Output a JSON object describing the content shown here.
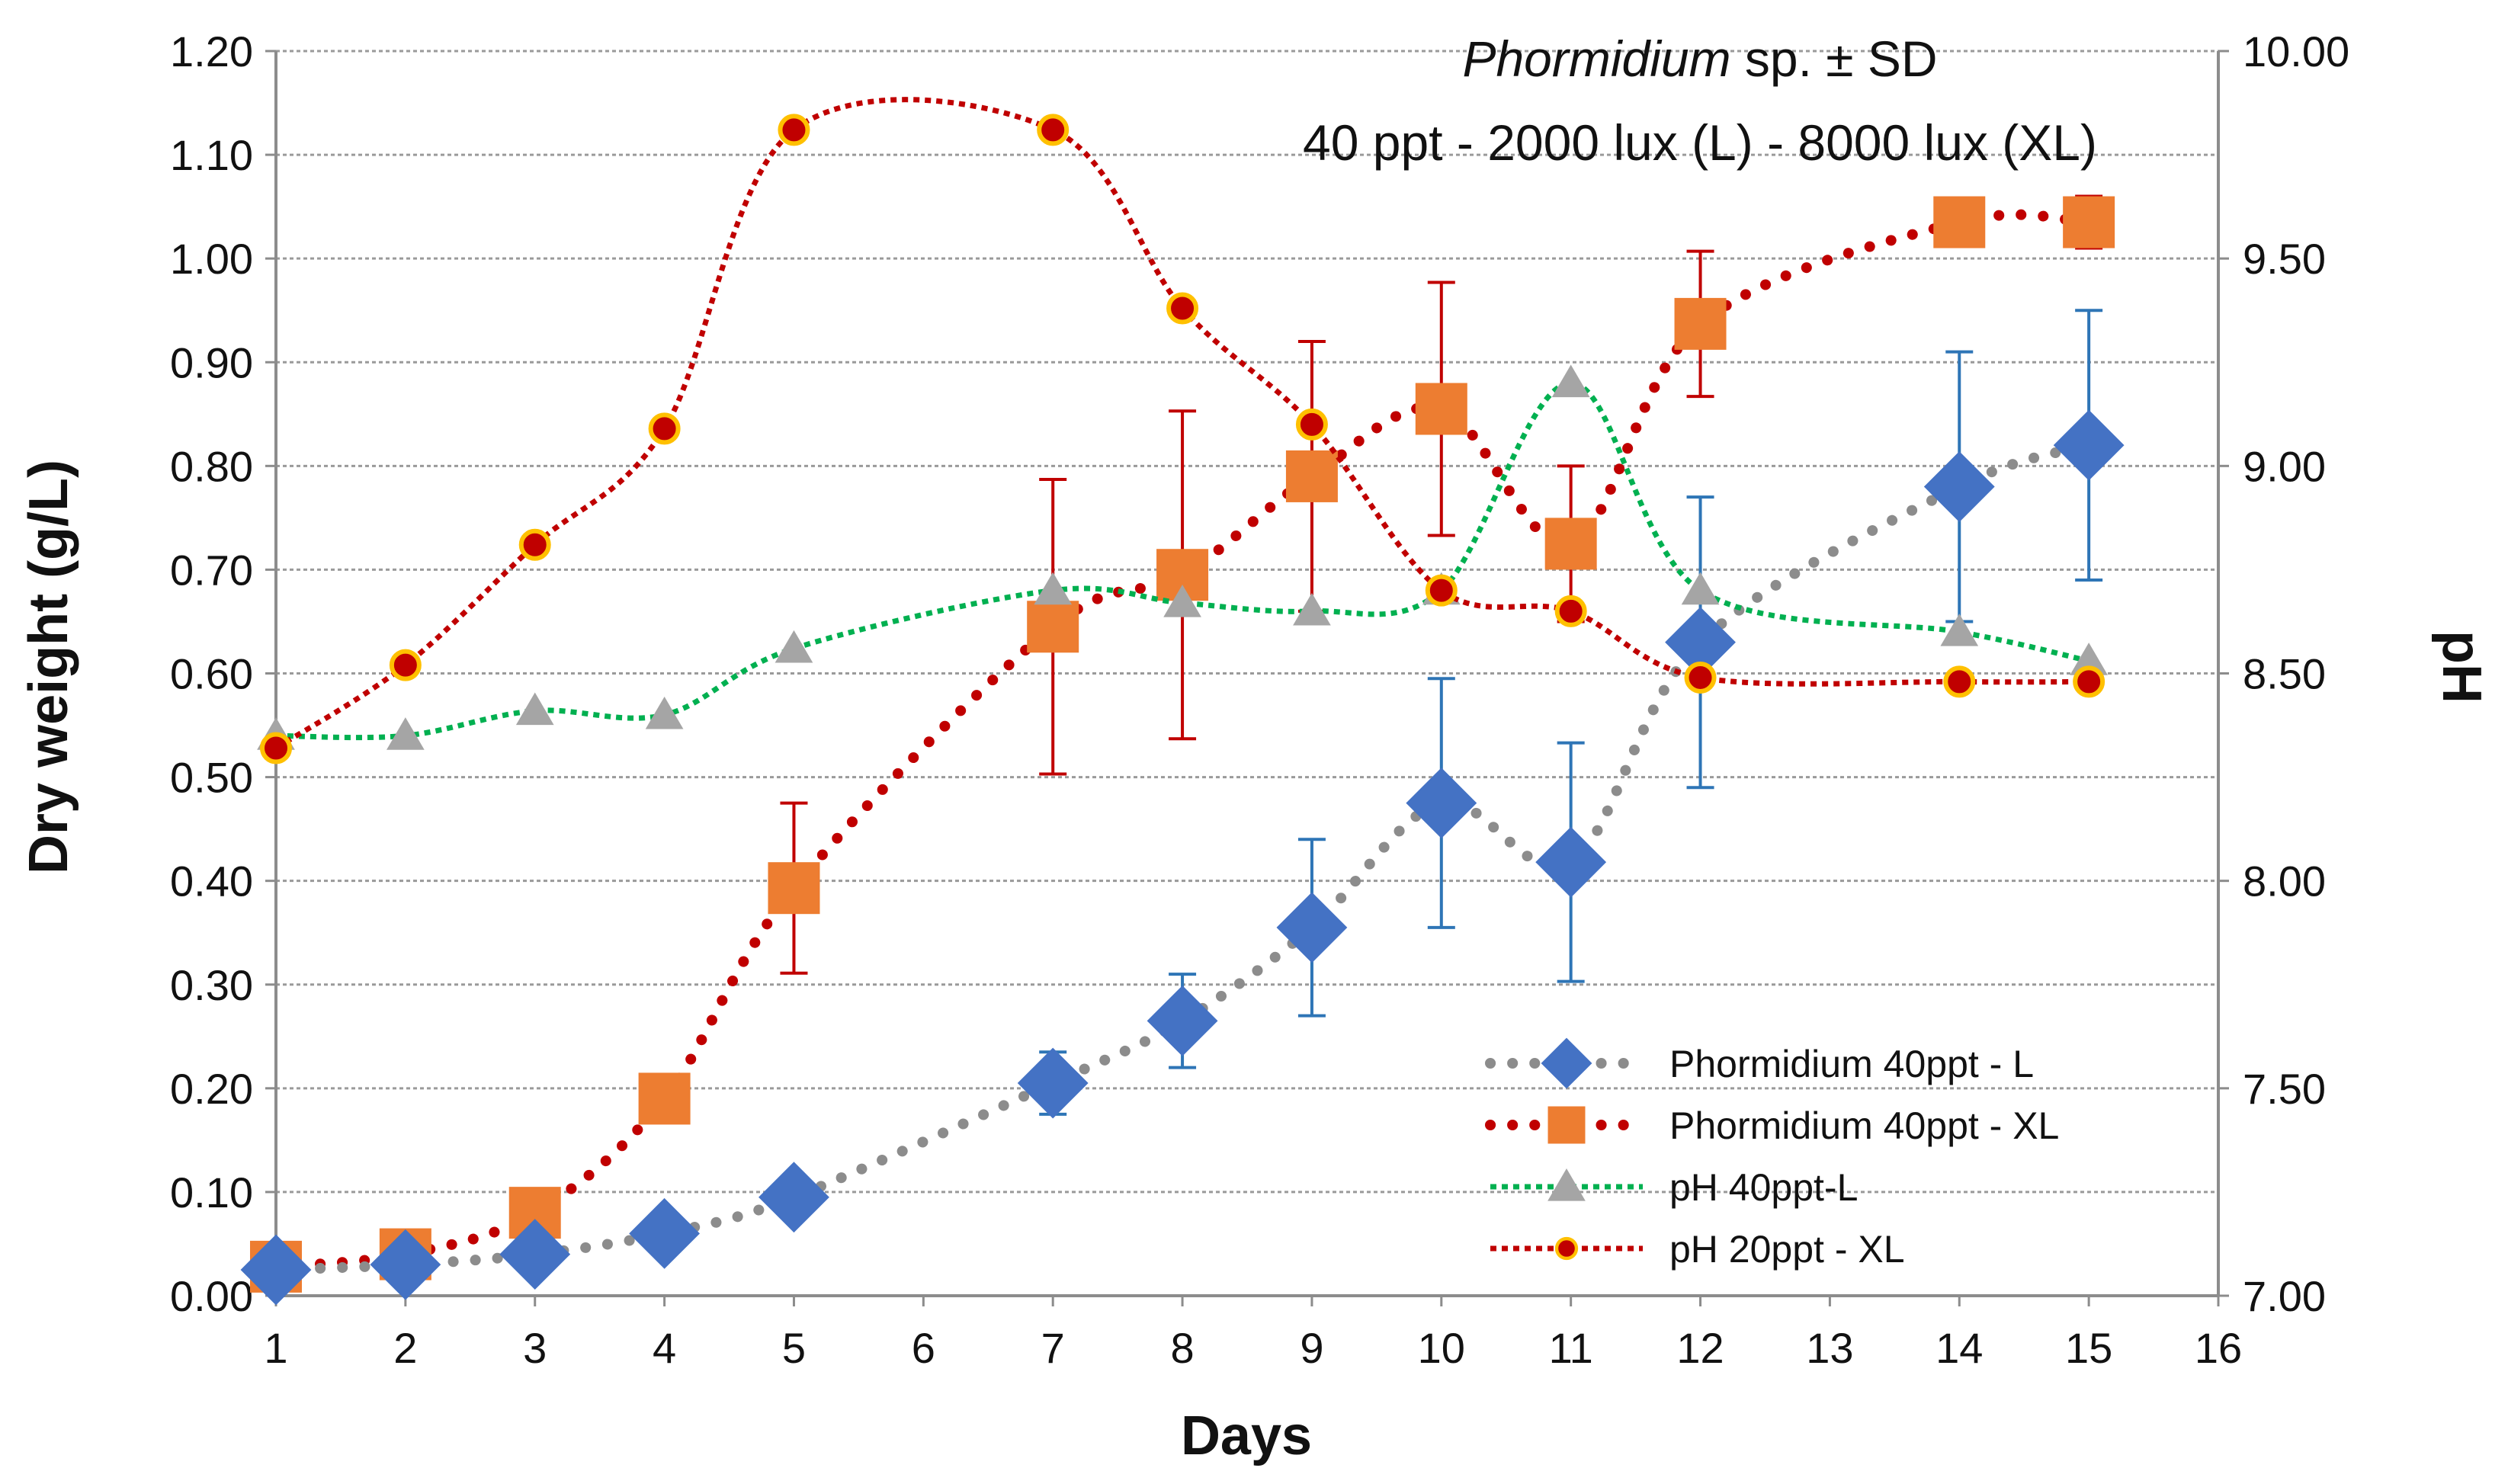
{
  "chart_data": {
    "type": "line",
    "title_italic": "Phormidium",
    "title_rest": " sp. ± SD",
    "subtitle": "40 ppt - 2000 lux (L) - 8000 lux (XL)",
    "xlabel": "Days",
    "ylabel": "Dry weight  (g/L)",
    "y2label": "pH",
    "xlim": [
      1,
      16
    ],
    "ylim": [
      0,
      1.2
    ],
    "y2lim": [
      7,
      10
    ],
    "x_ticks": [
      "1",
      "2",
      "3",
      "4",
      "5",
      "6",
      "7",
      "8",
      "9",
      "10",
      "11",
      "12",
      "13",
      "14",
      "15",
      "16"
    ],
    "y_ticks": [
      "0.00",
      "0.10",
      "0.20",
      "0.30",
      "0.40",
      "0.50",
      "0.60",
      "0.70",
      "0.80",
      "0.90",
      "1.00",
      "1.10",
      "1.20"
    ],
    "y2_ticks": [
      "7.00",
      "7.50",
      "8.00",
      "8.50",
      "9.00",
      "9.50",
      "10.00"
    ],
    "grid": true,
    "legend_position": "bottom-right",
    "series": [
      {
        "name": "Phormidium 40ppt - L",
        "axis": "left",
        "marker": "diamond",
        "marker_color": "#4472C4",
        "line_color": "#8C8C8C",
        "line_style": "round-dot",
        "error_color": "#2E75B6",
        "x": [
          1,
          2,
          3,
          4,
          5,
          7,
          8,
          9,
          10,
          11,
          12,
          14,
          15
        ],
        "values": [
          0.025,
          0.03,
          0.04,
          0.06,
          0.095,
          0.205,
          0.265,
          0.355,
          0.475,
          0.418,
          0.63,
          0.78,
          0.82
        ],
        "errors": [
          0,
          0,
          0,
          0,
          0,
          0.03,
          0.045,
          0.085,
          0.12,
          0.115,
          0.14,
          0.13,
          0.13
        ]
      },
      {
        "name": "Phormidium 40ppt - XL",
        "axis": "left",
        "marker": "square",
        "marker_color": "#ED7D31",
        "line_color": "#C00000",
        "line_style": "round-dot",
        "error_color": "#C00000",
        "x": [
          1,
          2,
          3,
          4,
          5,
          7,
          8,
          9,
          10,
          11,
          12,
          14,
          15
        ],
        "values": [
          0.028,
          0.04,
          0.08,
          0.19,
          0.393,
          0.645,
          0.695,
          0.79,
          0.855,
          0.725,
          0.937,
          1.035,
          1.035
        ],
        "errors": [
          0,
          0,
          0,
          0,
          0.082,
          0.142,
          0.158,
          0.13,
          0.122,
          0.075,
          0.07,
          0,
          0.025
        ]
      },
      {
        "name": "pH 40ppt-L",
        "axis": "right",
        "marker": "triangle",
        "marker_color": "#A5A5A5",
        "line_color": "#00B050",
        "line_style": "dot",
        "x": [
          1,
          2,
          3,
          4,
          5,
          7,
          8,
          9,
          10,
          11,
          12,
          14,
          15
        ],
        "values": [
          8.35,
          8.35,
          8.41,
          8.4,
          8.56,
          8.7,
          8.67,
          8.65,
          8.7,
          9.2,
          8.7,
          8.6,
          8.53
        ]
      },
      {
        "name": "pH 20ppt - XL",
        "axis": "right",
        "marker": "circle",
        "marker_color": "#C00000",
        "marker_edge": "#FFC000",
        "line_color": "#C00000",
        "line_style": "dot",
        "x": [
          1,
          2,
          3,
          4,
          5,
          7,
          8,
          9,
          10,
          11,
          12,
          14,
          15
        ],
        "values": [
          8.32,
          8.52,
          8.81,
          9.09,
          9.81,
          9.81,
          9.38,
          9.1,
          8.7,
          8.65,
          8.49,
          8.48,
          8.48
        ]
      }
    ]
  }
}
